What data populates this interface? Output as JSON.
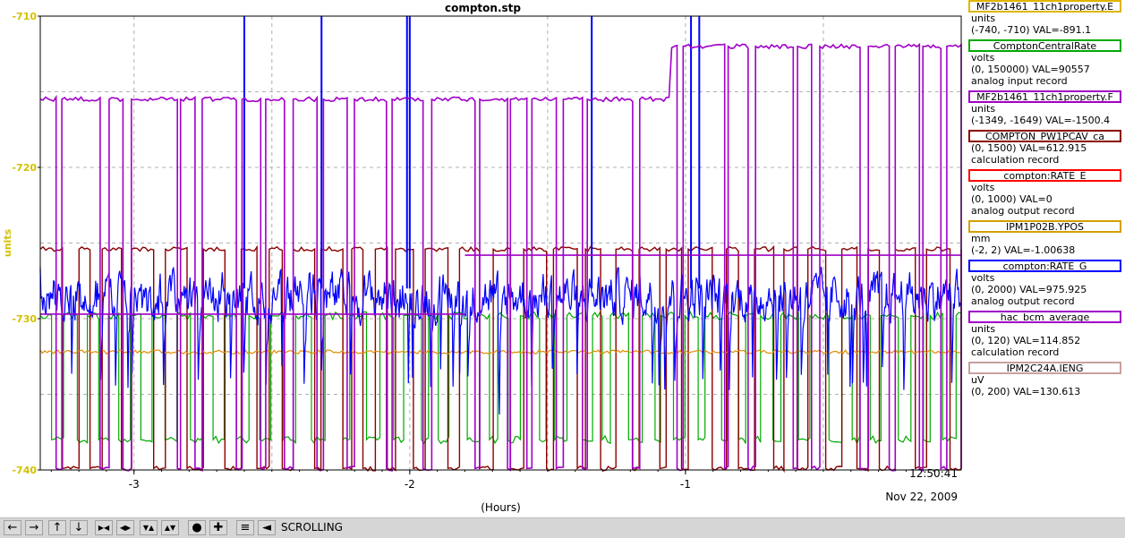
{
  "chart_data": {
    "type": "line",
    "title": "compton.stp",
    "ylabel": "units",
    "xlabel": "(Hours)",
    "ylim": [
      -740,
      -710
    ],
    "xlim": [
      -3.34,
      0
    ],
    "yticks": [
      "-710",
      "-720",
      "-730",
      "-740"
    ],
    "xticks": [
      "-3",
      "-2",
      "-1"
    ],
    "cursor_label": "12:50:41",
    "date_label": "Nov 22, 2009",
    "grid": true,
    "series": [
      {
        "name": "hac_bcm_average",
        "color": "#a000c8",
        "pattern": "purple_square_wave",
        "levels": [
          -715.5,
          -739.9,
          -712
        ],
        "reference_line": [
          {
            "x": [
              -3.34,
              -1.8
            ],
            "y": -729.7
          },
          {
            "x": [
              -1.8,
              0
            ],
            "y": -725.8
          }
        ]
      },
      {
        "name": "compton:RATE_G",
        "color": "#0000ff",
        "pattern": "noisy_blue",
        "band": [
          -731,
          -726
        ],
        "spike_positions": [
          -2.6,
          -2.32,
          -2.01,
          -2.0,
          -1.34,
          -0.98,
          -0.95
        ]
      },
      {
        "name": "COMPTON_PW1PCAV_ca",
        "color": "#8b0000",
        "pattern": "dark_red_square_wave",
        "levels": [
          -725.4,
          -739.9
        ]
      },
      {
        "name": "ComptonCentralRate",
        "color": "#00aa00",
        "pattern": "green_square_wave",
        "levels": [
          -729.8,
          -738
        ]
      },
      {
        "name": "IPM1P02B.YPOS",
        "color": "#e08c00",
        "pattern": "orange_flat",
        "level": -732.2
      }
    ]
  },
  "legend": [
    {
      "name": "MF2b1461_11ch1property.E",
      "color": "#e0b400",
      "lines": [
        "units",
        "(-740, -710) VAL=-891.1"
      ]
    },
    {
      "name": "ComptonCentralRate",
      "color": "#00aa00",
      "lines": [
        "volts",
        "(0, 150000) VAL=90557",
        "analog input record"
      ]
    },
    {
      "name": "MF2b1461_11ch1property.F",
      "color": "#a000c8",
      "lines": [
        "units",
        "(-1349, -1649) VAL=-1500.4"
      ]
    },
    {
      "name": "COMPTON_PW1PCAV_ca",
      "color": "#8b0000",
      "lines": [
        "(0, 1500) VAL=612.915",
        "calculation record"
      ]
    },
    {
      "name": "compton:RATE_E",
      "color": "#ff0000",
      "lines": [
        "volts",
        "(0, 1000) VAL=0",
        "analog output record"
      ]
    },
    {
      "name": "IPM1P02B.YPOS",
      "color": "#d4a000",
      "lines": [
        "mm",
        "(-2, 2) VAL=-1.00638"
      ]
    },
    {
      "name": "compton:RATE_G",
      "color": "#0000ff",
      "lines": [
        "volts",
        "(0, 2000) VAL=975.925",
        "analog output record"
      ]
    },
    {
      "name": "hac_bcm_average",
      "color": "#a000c8",
      "lines": [
        "units",
        "(0, 120) VAL=114.852",
        "calculation record"
      ]
    },
    {
      "name": "IPM2C24A.IENG",
      "color": "#c8a0a0",
      "lines": [
        "uV",
        "(0, 200) VAL=130.613"
      ]
    }
  ],
  "toolbar": {
    "icons": [
      "arrow-left-icon",
      "arrow-right-icon",
      "arrow-up-icon",
      "arrow-down-icon",
      "zoom-in-horizontal-icon",
      "zoom-out-horizontal-icon",
      "zoom-in-vertical-icon",
      "zoom-out-vertical-icon",
      "circle-icon",
      "plus-icon",
      "auto-scale-icon",
      "scroll-back-icon"
    ],
    "glyphs": [
      "←",
      "→",
      "↑",
      "↓",
      "▶◀",
      "◀▶",
      "▼▲",
      "▲▼",
      "●",
      "✚",
      "≡",
      "◄"
    ],
    "status": "SCROLLING"
  }
}
